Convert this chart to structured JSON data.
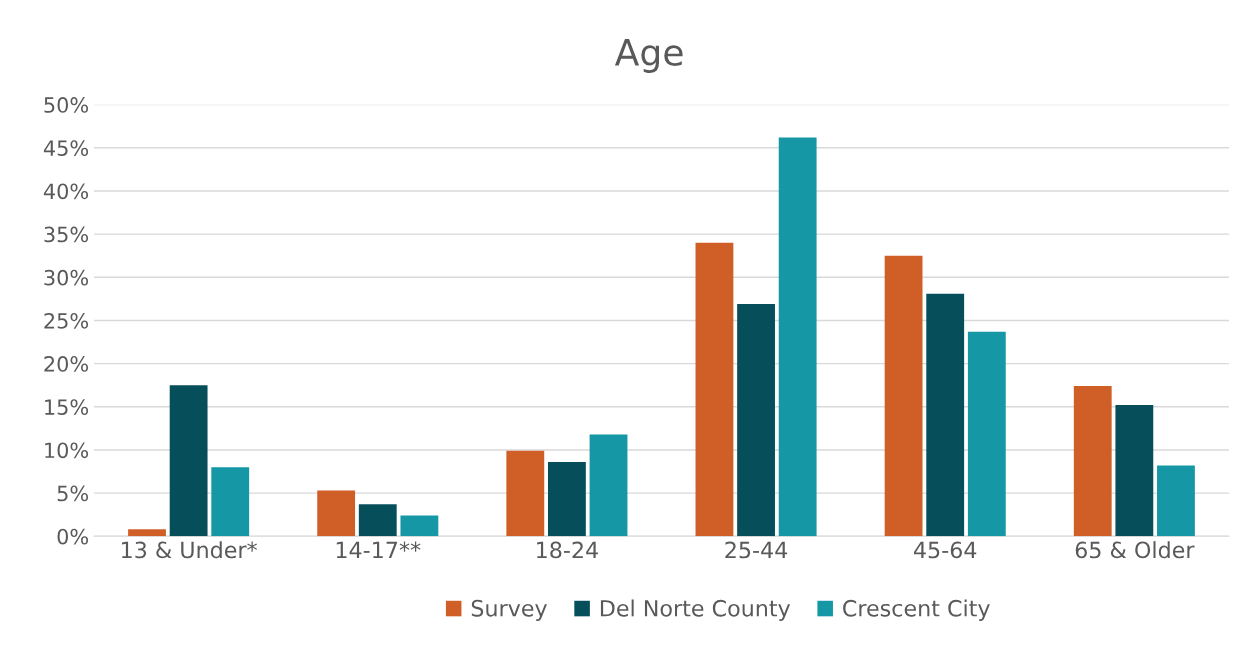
{
  "chart_data": {
    "type": "bar",
    "title": "Age",
    "categories": [
      "13 & Under*",
      "14-17**",
      "18-24",
      "25-44",
      "45-64",
      "65 & Older"
    ],
    "series": [
      {
        "name": "Survey",
        "color": "#d05f27",
        "values": [
          0.8,
          5.3,
          9.9,
          34.0,
          32.5,
          17.4
        ]
      },
      {
        "name": "Del Norte County",
        "color": "#054e5a",
        "values": [
          17.5,
          3.7,
          8.6,
          26.9,
          28.1,
          15.2
        ]
      },
      {
        "name": "Crescent City",
        "color": "#1597a5",
        "values": [
          8.0,
          2.4,
          11.8,
          46.2,
          23.7,
          8.2
        ]
      }
    ],
    "ylim": [
      0,
      50
    ],
    "yticks": [
      {
        "value": 0,
        "label": "0%"
      },
      {
        "value": 5,
        "label": "5%"
      },
      {
        "value": 10,
        "label": "10%"
      },
      {
        "value": 15,
        "label": "15%"
      },
      {
        "value": 20,
        "label": "20%"
      },
      {
        "value": 25,
        "label": "25%"
      },
      {
        "value": 30,
        "label": "30%"
      },
      {
        "value": 35,
        "label": "35%"
      },
      {
        "value": 40,
        "label": "40%"
      },
      {
        "value": 45,
        "label": "45%"
      },
      {
        "value": 50,
        "label": "50%"
      }
    ],
    "grid": "y",
    "legend": "bottom"
  }
}
